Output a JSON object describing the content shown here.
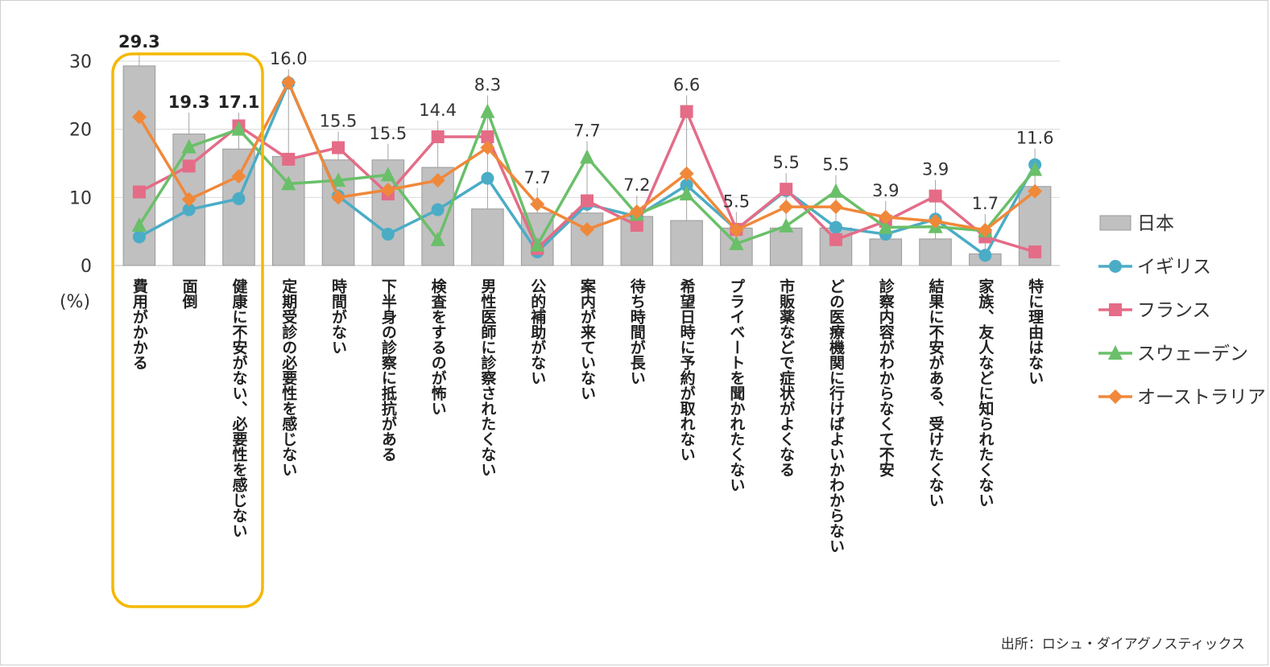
{
  "chart_data": {
    "type": "bar",
    "categories": [
      "費用がかかる",
      "面倒",
      "健康に不安がない、必要性を感じない",
      "定期受診の必要性を感じない",
      "時間がない",
      "下半身の診察に抵抗がある",
      "検査をするのが怖い",
      "男性医師に診察されたくない",
      "公的補助がない",
      "案内が来ていない",
      "待ち時間が長い",
      "希望日時に予約が取れない",
      "プライベートを聞かれたくない",
      "市販薬などで症状がよくなる",
      "どの医療機関に行けばよいかわからない",
      "診察内容がわからなくて不安",
      "結果に不安がある、受けたくない",
      "家族、友人などに知られたくない",
      "特に理由はない"
    ],
    "series": [
      {
        "name": "日本",
        "type": "bar",
        "color": "#c0c0c0",
        "values": [
          29.3,
          19.3,
          17.1,
          16.0,
          15.5,
          15.5,
          14.4,
          8.3,
          7.7,
          7.7,
          7.2,
          6.6,
          5.5,
          5.5,
          5.5,
          3.9,
          3.9,
          1.7,
          11.6
        ]
      },
      {
        "name": "イギリス",
        "type": "line",
        "marker": "circle",
        "color": "#4bacc6",
        "values": [
          4.2,
          8.2,
          9.8,
          26.8,
          10.2,
          4.6,
          8.2,
          12.8,
          2.0,
          9.0,
          7.2,
          11.8,
          5.3,
          11.0,
          5.6,
          4.6,
          6.8,
          1.5,
          14.8
        ]
      },
      {
        "name": "フランス",
        "type": "line",
        "marker": "square",
        "color": "#e46c87",
        "values": [
          10.8,
          14.6,
          20.5,
          15.6,
          17.3,
          10.5,
          18.9,
          18.9,
          2.5,
          9.5,
          5.9,
          22.6,
          5.3,
          11.2,
          3.8,
          6.5,
          10.2,
          4.2,
          2.0
        ]
      },
      {
        "name": "スウェーデン",
        "type": "line",
        "marker": "triangle",
        "color": "#6abf69",
        "values": [
          5.9,
          17.4,
          20.0,
          12.0,
          12.5,
          13.3,
          3.8,
          22.6,
          3.0,
          15.9,
          7.5,
          10.5,
          3.2,
          5.8,
          10.9,
          5.6,
          5.7,
          5.1,
          14.1
        ]
      },
      {
        "name": "オーストラリア",
        "type": "line",
        "marker": "diamond",
        "color": "#f0883a",
        "values": [
          21.8,
          9.7,
          13.1,
          26.9,
          10.0,
          11.1,
          12.5,
          17.3,
          9.0,
          5.3,
          7.9,
          13.5,
          5.2,
          8.6,
          8.6,
          7.1,
          6.5,
          5.2,
          10.9
        ]
      }
    ],
    "data_labels": [
      "29.3",
      "19.3",
      "17.1",
      "16.0",
      "15.5",
      "15.5",
      "14.4",
      "8.3",
      "7.7",
      "7.7",
      "7.2",
      "6.6",
      "5.5",
      "5.5",
      "5.5",
      "3.9",
      "3.9",
      "1.7",
      "11.6"
    ],
    "bold_labels": [
      0,
      1,
      2
    ],
    "highlight_categories": [
      0,
      1,
      2
    ],
    "highlight_color": "#f5b800",
    "y_ticks": [
      0,
      10,
      20,
      30
    ],
    "ylim": [
      0,
      30
    ],
    "ylabel": "(%)",
    "grid": true,
    "legend_placement": "right",
    "source": "出所：ロシュ・ダイアグノスティックス"
  }
}
